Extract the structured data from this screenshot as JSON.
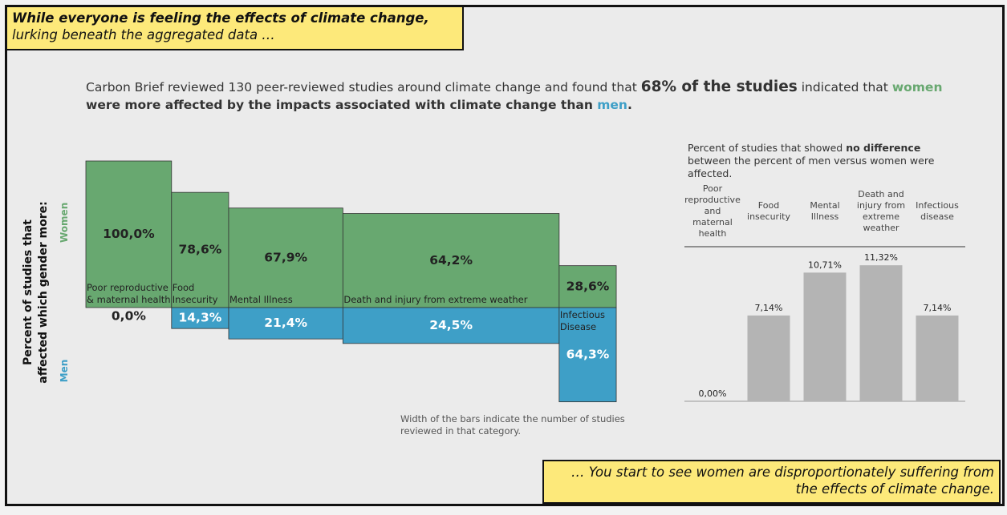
{
  "header": {
    "bold": "While everyone is feeling the effects of climate change,",
    "rest": " lurking beneath the aggregated data …"
  },
  "intro": [
    "Carbon Brief reviewed 130 peer-reviewed studies around climate change and found that ",
    "68% of the studies",
    " indicated that ",
    "women",
    " were more affected by the impacts associated with climate change than ",
    "men",
    "."
  ],
  "footer": "… You start to see women are disproportionately suffering from the effects of climate change.",
  "chart_data": [
    {
      "type": "marimekko",
      "y_label": "Percent of studies that affected which gender more:",
      "categories": [
        "Poor reproductive & maternal health",
        "Food Insecurity",
        "Mental Illness",
        "Death and injury from extreme weather",
        "Infectious Disease"
      ],
      "widths": [
        21,
        14,
        28,
        53,
        14
      ],
      "series": [
        {
          "name": "Women",
          "color": "#68a870",
          "values": [
            100.0,
            78.6,
            67.9,
            64.2,
            28.6
          ],
          "value_labels": [
            "100,0%",
            "78,6%",
            "67,9%",
            "64,2%",
            "28,6%"
          ]
        },
        {
          "name": "Men",
          "color": "#3e9fc7",
          "values": [
            0.0,
            14.3,
            21.4,
            24.5,
            64.3
          ],
          "value_labels": [
            "0,0%",
            "14,3%",
            "21,4%",
            "24,5%",
            "64,3%"
          ]
        }
      ],
      "note": "Width of the bars indicate the number of studies reviewed in that category."
    },
    {
      "type": "bar",
      "title": [
        "Percent of studies that showed ",
        "no difference",
        " between the percent of men versus women were affected."
      ],
      "categories": [
        "Poor reproductive and maternal health",
        "Food insecurity",
        "Mental Illness",
        "Death and injury from extreme weather",
        "Infectious disease"
      ],
      "values": [
        0.0,
        7.14,
        10.71,
        11.32,
        7.14
      ],
      "value_labels": [
        "0,00%",
        "7,14%",
        "10,71%",
        "11,32%",
        "7,14%"
      ],
      "color": "#b4b4b4"
    }
  ]
}
